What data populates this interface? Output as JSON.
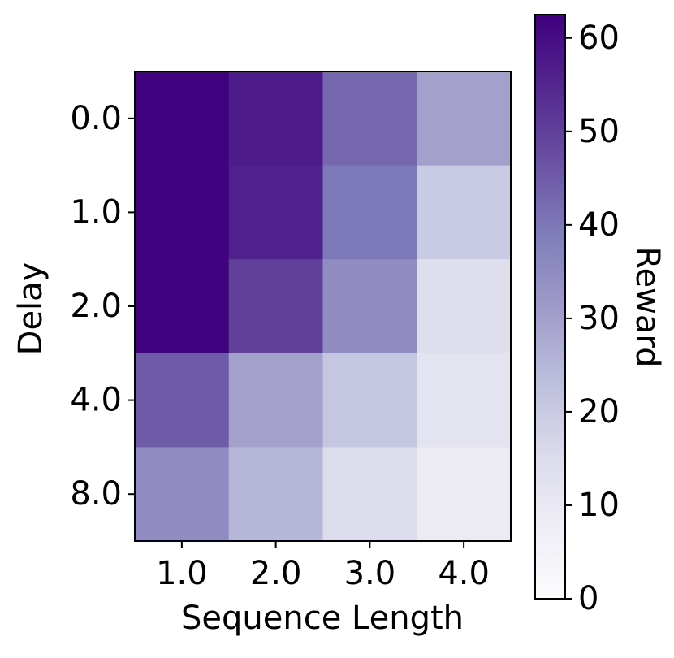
{
  "chart_data": {
    "type": "heatmap",
    "xlabel": "Sequence Length",
    "ylabel": "Delay",
    "x_categories": [
      "1.0",
      "2.0",
      "3.0",
      "4.0"
    ],
    "y_categories": [
      "0.0",
      "1.0",
      "2.0",
      "4.0",
      "8.0"
    ],
    "values": [
      [
        62,
        57,
        43,
        30
      ],
      [
        62,
        56,
        40,
        20
      ],
      [
        62,
        50,
        35,
        14
      ],
      [
        45,
        30,
        21,
        12
      ],
      [
        35,
        25,
        15,
        9
      ]
    ],
    "colormap": "Purples",
    "clim": [
      0,
      62.5
    ],
    "colorbar_ticks": [
      0,
      10,
      20,
      30,
      40,
      50,
      60
    ],
    "colorbar_label": "Reward"
  }
}
